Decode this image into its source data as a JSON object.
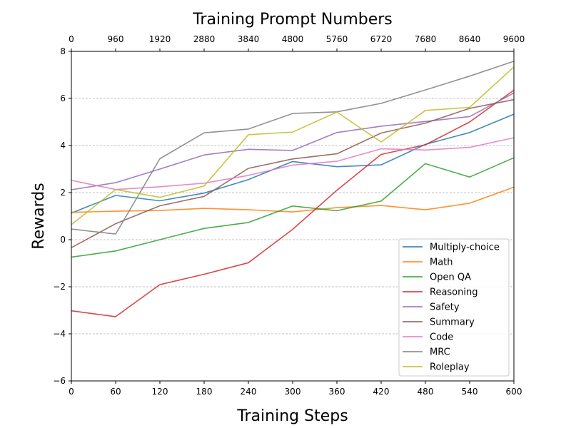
{
  "chart_data": {
    "type": "line",
    "title": "",
    "top_xlabel": "Training Prompt Numbers",
    "xlabel": "Training Steps",
    "ylabel": "Rewards",
    "x": [
      0,
      60,
      120,
      180,
      240,
      300,
      360,
      420,
      480,
      540,
      600
    ],
    "xlim": [
      0,
      600
    ],
    "ylim": [
      -6,
      8
    ],
    "xticks": [
      0,
      60,
      120,
      180,
      240,
      300,
      360,
      420,
      480,
      540,
      600
    ],
    "yticks": [
      -6,
      -4,
      -2,
      0,
      2,
      4,
      6,
      8
    ],
    "top_xticks": [
      0,
      960,
      1920,
      2880,
      3840,
      4800,
      5760,
      6720,
      7680,
      8640,
      9600
    ],
    "grid": "horizontal dashed",
    "legend_position": "lower-right",
    "series": [
      {
        "name": "Multiply-choice",
        "color": "#1f77b4",
        "values": [
          1.13,
          1.88,
          1.65,
          1.98,
          2.55,
          3.32,
          3.1,
          3.18,
          4.05,
          4.55,
          5.33
        ]
      },
      {
        "name": "Math",
        "color": "#ff7f0e",
        "values": [
          1.16,
          1.21,
          1.24,
          1.33,
          1.27,
          1.18,
          1.36,
          1.45,
          1.27,
          1.55,
          2.23
        ]
      },
      {
        "name": "Open QA",
        "color": "#2ca02c",
        "values": [
          -0.74,
          -0.48,
          0.0,
          0.48,
          0.73,
          1.43,
          1.23,
          1.64,
          3.23,
          2.66,
          3.48
        ]
      },
      {
        "name": "Reasoning",
        "color": "#d62728",
        "values": [
          -3.02,
          -3.27,
          -1.91,
          -1.47,
          -0.98,
          0.44,
          2.1,
          3.62,
          4.03,
          5.0,
          6.35
        ]
      },
      {
        "name": "Safety",
        "color": "#9467bd",
        "values": [
          2.12,
          2.42,
          3.0,
          3.6,
          3.84,
          3.79,
          4.55,
          4.82,
          5.02,
          5.23,
          6.23
        ]
      },
      {
        "name": "Summary",
        "color": "#8c564b",
        "values": [
          -0.34,
          0.68,
          1.44,
          1.84,
          3.03,
          3.43,
          3.65,
          4.53,
          4.95,
          5.58,
          5.95
        ]
      },
      {
        "name": "Code",
        "color": "#e377c2",
        "values": [
          2.52,
          2.13,
          2.25,
          2.4,
          2.73,
          3.17,
          3.33,
          3.86,
          3.81,
          3.92,
          4.33
        ]
      },
      {
        "name": "MRC",
        "color": "#7f7f7f",
        "values": [
          0.45,
          0.24,
          3.44,
          4.54,
          4.7,
          5.36,
          5.43,
          5.79,
          6.36,
          6.95,
          7.58
        ]
      },
      {
        "name": "Roleplay",
        "color": "#bcbd22",
        "values": [
          0.64,
          2.13,
          1.8,
          2.28,
          4.46,
          4.57,
          5.42,
          4.15,
          5.49,
          5.62,
          7.34
        ]
      }
    ]
  }
}
